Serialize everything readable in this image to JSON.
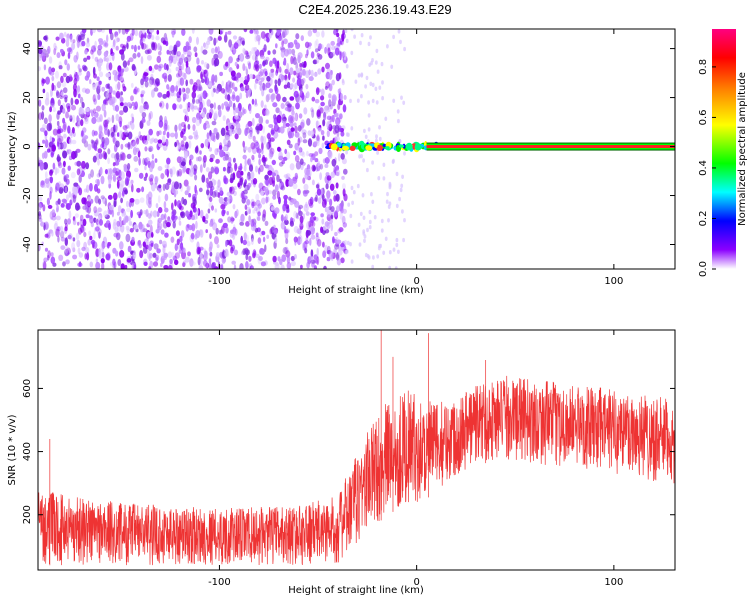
{
  "title": "C2E4.2025.236.19.43.E29",
  "chart_data": [
    {
      "type": "heatmap",
      "xlabel": "Height of straight line (km)",
      "ylabel": "Frequency (Hz)",
      "xlim": [
        -192,
        131
      ],
      "ylim": [
        -50,
        48
      ],
      "xticks": [
        -100,
        0,
        100
      ],
      "yticks": [
        -40,
        -20,
        0,
        20,
        40
      ],
      "noise_region_x": [
        -192,
        -36
      ],
      "transition_region_x": [
        -36,
        10
      ],
      "signal_trace": {
        "frequency_hz": 0,
        "x_range": [
          -45,
          131
        ],
        "description_levels": "peak amplitude along 0 Hz for x > 10 km"
      },
      "colorbar": {
        "label": "Normalized spectral amplitude",
        "range": [
          0,
          0.95
        ],
        "ticks": [
          0.0,
          0.2,
          0.4,
          0.6,
          0.8
        ],
        "tick_labels": [
          "0.0",
          "0.2",
          "0.4",
          "0.6",
          "0.8"
        ],
        "colors": [
          "#ffffff",
          "#8b00ff",
          "#0000ff",
          "#00ffff",
          "#00ff00",
          "#ffff00",
          "#ff8000",
          "#ff0000",
          "#ff0080"
        ]
      },
      "grid": false
    },
    {
      "type": "line",
      "xlabel": "Height of straight line (km)",
      "ylabel": "SNR (10 * v/v)",
      "xlim": [
        -192,
        131
      ],
      "ylim": [
        25,
        785
      ],
      "xticks": [
        -100,
        0,
        100
      ],
      "yticks": [
        200,
        400,
        600
      ],
      "color": "#ee3333",
      "envelope_x": [
        -192,
        -150,
        -100,
        -60,
        -40,
        -35,
        -25,
        -15,
        -5,
        5,
        15,
        30,
        45,
        60,
        80,
        100,
        115,
        131
      ],
      "envelope_low": [
        40,
        40,
        40,
        40,
        45,
        60,
        140,
        200,
        230,
        250,
        300,
        360,
        370,
        360,
        350,
        330,
        310,
        290
      ],
      "envelope_high": [
        280,
        240,
        220,
        230,
        260,
        330,
        470,
        560,
        600,
        560,
        560,
        620,
        640,
        630,
        610,
        600,
        590,
        560
      ],
      "spikes": [
        {
          "x": -186,
          "y": 440
        },
        {
          "x": -18,
          "y": 785
        },
        {
          "x": -12,
          "y": 700
        },
        {
          "x": 6,
          "y": 775
        },
        {
          "x": 35,
          "y": 690
        }
      ],
      "grid": false
    }
  ]
}
